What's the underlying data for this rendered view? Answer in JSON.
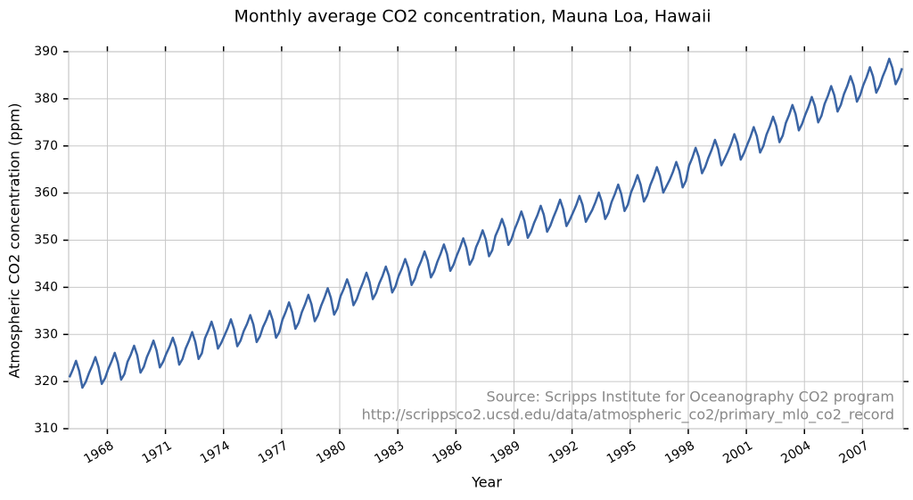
{
  "chart_data": {
    "type": "line",
    "title": "Monthly average CO2 concentration, Mauna Loa, Hawaii",
    "xlabel": "Year",
    "ylabel": "Atmospheric CO2 concentration (ppm)",
    "annotations": [
      "Source: Scripps Institute for Oceanography CO2 program",
      "http://scrippsco2.ucsd.edu/data/atmospheric_co2/primary_mlo_co2_record"
    ],
    "color": "#3a64a4",
    "grid": true,
    "xlim": [
      1966,
      2009.1
    ],
    "xticks": [
      1968,
      1971,
      1974,
      1977,
      1980,
      1983,
      1986,
      1989,
      1992,
      1995,
      1998,
      2001,
      2004,
      2007
    ],
    "ylim": [
      310,
      390
    ],
    "yticks": [
      310,
      320,
      330,
      340,
      350,
      360,
      370,
      380,
      390
    ],
    "x": [
      1966.04,
      1966.21,
      1966.38,
      1966.54,
      1966.71,
      1966.88,
      1967.04,
      1967.21,
      1967.38,
      1967.54,
      1967.71,
      1967.88,
      1968.04,
      1968.21,
      1968.38,
      1968.54,
      1968.71,
      1968.88,
      1969.04,
      1969.21,
      1969.38,
      1969.54,
      1969.71,
      1969.88,
      1970.04,
      1970.21,
      1970.38,
      1970.54,
      1970.71,
      1970.88,
      1971.04,
      1971.21,
      1971.38,
      1971.54,
      1971.71,
      1971.88,
      1972.04,
      1972.21,
      1972.38,
      1972.54,
      1972.71,
      1972.88,
      1973.04,
      1973.21,
      1973.38,
      1973.54,
      1973.71,
      1973.88,
      1974.04,
      1974.21,
      1974.38,
      1974.54,
      1974.71,
      1974.88,
      1975.04,
      1975.21,
      1975.38,
      1975.54,
      1975.71,
      1975.88,
      1976.04,
      1976.21,
      1976.38,
      1976.54,
      1976.71,
      1976.88,
      1977.04,
      1977.21,
      1977.38,
      1977.54,
      1977.71,
      1977.88,
      1978.04,
      1978.21,
      1978.38,
      1978.54,
      1978.71,
      1978.88,
      1979.04,
      1979.21,
      1979.38,
      1979.54,
      1979.71,
      1979.88,
      1980.04,
      1980.21,
      1980.38,
      1980.54,
      1980.71,
      1980.88,
      1981.04,
      1981.21,
      1981.38,
      1981.54,
      1981.71,
      1981.88,
      1982.04,
      1982.21,
      1982.38,
      1982.54,
      1982.71,
      1982.88,
      1983.04,
      1983.21,
      1983.38,
      1983.54,
      1983.71,
      1983.88,
      1984.04,
      1984.21,
      1984.38,
      1984.54,
      1984.71,
      1984.88,
      1985.04,
      1985.21,
      1985.38,
      1985.54,
      1985.71,
      1985.88,
      1986.04,
      1986.21,
      1986.38,
      1986.54,
      1986.71,
      1986.88,
      1987.04,
      1987.21,
      1987.38,
      1987.54,
      1987.71,
      1987.88,
      1988.04,
      1988.21,
      1988.38,
      1988.54,
      1988.71,
      1988.88,
      1989.04,
      1989.21,
      1989.38,
      1989.54,
      1989.71,
      1989.88,
      1990.04,
      1990.21,
      1990.38,
      1990.54,
      1990.71,
      1990.88,
      1991.04,
      1991.21,
      1991.38,
      1991.54,
      1991.71,
      1991.88,
      1992.04,
      1992.21,
      1992.38,
      1992.54,
      1992.71,
      1992.88,
      1993.04,
      1993.21,
      1993.38,
      1993.54,
      1993.71,
      1993.88,
      1994.04,
      1994.21,
      1994.38,
      1994.54,
      1994.71,
      1994.88,
      1995.04,
      1995.21,
      1995.38,
      1995.54,
      1995.71,
      1995.88,
      1996.04,
      1996.21,
      1996.38,
      1996.54,
      1996.71,
      1996.88,
      1997.04,
      1997.21,
      1997.38,
      1997.54,
      1997.71,
      1997.88,
      1998.04,
      1998.21,
      1998.38,
      1998.54,
      1998.71,
      1998.88,
      1999.04,
      1999.21,
      1999.38,
      1999.54,
      1999.71,
      1999.88,
      2000.04,
      2000.21,
      2000.38,
      2000.54,
      2000.71,
      2000.88,
      2001.04,
      2001.21,
      2001.38,
      2001.54,
      2001.71,
      2001.88,
      2002.04,
      2002.21,
      2002.38,
      2002.54,
      2002.71,
      2002.88,
      2003.04,
      2003.21,
      2003.38,
      2003.54,
      2003.71,
      2003.88,
      2004.04,
      2004.21,
      2004.38,
      2004.54,
      2004.71,
      2004.88,
      2005.04,
      2005.21,
      2005.38,
      2005.54,
      2005.71,
      2005.88,
      2006.04,
      2006.21,
      2006.38,
      2006.54,
      2006.71,
      2006.88,
      2007.04,
      2007.21,
      2007.38,
      2007.54,
      2007.71,
      2007.88,
      2008.04,
      2008.21,
      2008.38,
      2008.54,
      2008.71,
      2008.88,
      2009.04
    ],
    "values": [
      320.9,
      322.5,
      324.4,
      322.3,
      318.7,
      319.9,
      321.7,
      323.3,
      325.2,
      323.1,
      319.5,
      320.7,
      322.6,
      324.2,
      326.1,
      324.0,
      320.4,
      321.6,
      324.2,
      325.7,
      327.6,
      325.6,
      321.9,
      323.1,
      325.2,
      326.8,
      328.7,
      326.6,
      323.0,
      324.2,
      325.9,
      327.4,
      329.3,
      327.3,
      323.6,
      324.8,
      327.0,
      328.6,
      330.5,
      328.4,
      324.8,
      326.0,
      329.2,
      330.8,
      332.7,
      330.6,
      327.0,
      328.2,
      329.7,
      331.3,
      333.2,
      331.1,
      327.5,
      328.7,
      330.7,
      332.2,
      334.1,
      332.1,
      328.4,
      329.6,
      331.6,
      333.1,
      335.0,
      333.0,
      329.3,
      330.5,
      333.1,
      334.8,
      336.8,
      334.8,
      331.2,
      332.5,
      334.7,
      336.4,
      338.4,
      336.4,
      332.8,
      334.1,
      336.1,
      337.8,
      339.8,
      337.8,
      334.2,
      335.5,
      338.1,
      339.7,
      341.7,
      339.8,
      336.2,
      337.5,
      339.4,
      341.1,
      343.1,
      341.1,
      337.5,
      338.8,
      340.8,
      342.4,
      344.4,
      342.5,
      338.9,
      340.2,
      342.4,
      344.0,
      346.0,
      344.1,
      340.5,
      341.8,
      344.0,
      345.6,
      347.6,
      345.7,
      342.1,
      343.4,
      345.4,
      347.1,
      349.1,
      347.1,
      343.5,
      344.8,
      346.7,
      348.4,
      350.4,
      348.4,
      344.8,
      346.1,
      348.5,
      350.1,
      352.1,
      350.2,
      346.6,
      347.9,
      350.9,
      352.5,
      354.5,
      352.6,
      349.0,
      350.3,
      352.4,
      354.1,
      356.1,
      354.1,
      350.5,
      351.8,
      353.7,
      355.3,
      357.3,
      355.4,
      351.8,
      353.1,
      354.9,
      356.6,
      358.6,
      356.6,
      353.0,
      354.3,
      355.8,
      357.4,
      359.4,
      357.5,
      353.9,
      355.2,
      356.4,
      358.1,
      360.1,
      358.1,
      354.5,
      355.8,
      358.1,
      359.8,
      361.8,
      359.8,
      356.2,
      357.5,
      360.1,
      361.8,
      363.8,
      361.8,
      358.2,
      359.5,
      361.7,
      363.4,
      365.5,
      363.6,
      360.1,
      361.5,
      362.8,
      364.5,
      366.6,
      364.7,
      361.2,
      362.6,
      365.8,
      367.5,
      369.6,
      367.7,
      364.2,
      365.6,
      367.5,
      369.2,
      371.3,
      369.4,
      365.9,
      367.3,
      368.7,
      370.4,
      372.5,
      370.6,
      367.1,
      368.5,
      370.2,
      371.9,
      374.0,
      372.1,
      368.6,
      370.0,
      372.4,
      374.1,
      376.2,
      374.3,
      370.8,
      372.2,
      374.9,
      376.6,
      378.7,
      376.8,
      373.3,
      374.7,
      376.6,
      378.3,
      380.4,
      378.5,
      375.0,
      376.4,
      378.9,
      380.6,
      382.7,
      380.8,
      377.3,
      378.7,
      381.0,
      382.7,
      384.8,
      382.9,
      379.4,
      380.8,
      382.9,
      384.6,
      386.7,
      384.8,
      381.3,
      382.7,
      384.7,
      386.4,
      388.5,
      386.6,
      383.1,
      384.5,
      386.5
    ]
  }
}
